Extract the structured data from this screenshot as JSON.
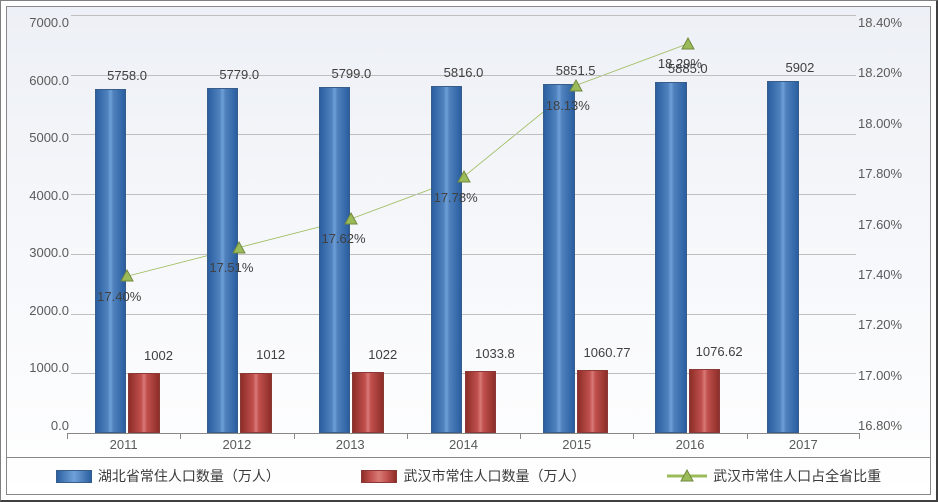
{
  "chart": {
    "type": "bar+line",
    "background_gradient": [
      "#edf0f6",
      "#ffffff"
    ],
    "grid_color": "#bfbfbf",
    "border_color": "#888888",
    "font_family": "Microsoft YaHei",
    "label_fontsize": 13,
    "label_color": "#5a5a5a",
    "datalabel_fontsize": 13,
    "datalabel_color": "#404040",
    "categories": [
      "2011",
      "2012",
      "2013",
      "2014",
      "2015",
      "2016",
      "2017"
    ],
    "left_axis": {
      "min": 0.0,
      "max": 7000.0,
      "step": 1000.0,
      "ticks": [
        "7000.0",
        "6000.0",
        "5000.0",
        "4000.0",
        "3000.0",
        "2000.0",
        "1000.0",
        "0.0"
      ]
    },
    "right_axis": {
      "min": 16.8,
      "max": 18.4,
      "step": 0.2,
      "format": "percent",
      "ticks": [
        "18.40%",
        "18.20%",
        "18.00%",
        "17.80%",
        "17.60%",
        "17.40%",
        "17.20%",
        "17.00%",
        "16.80%"
      ]
    },
    "series": {
      "hubei": {
        "name": "湖北省常住人口数量（万人）",
        "type": "bar",
        "color": "#4f81bd",
        "border_color": "#385d8a",
        "bar_width_ratio": 0.28,
        "values": [
          5758.0,
          5779.0,
          5799.0,
          5816.0,
          5851.5,
          5885.0,
          5902
        ],
        "labels": [
          "5758.0",
          "5779.0",
          "5799.0",
          "5816.0",
          "5851.5",
          "5885.0",
          "5902"
        ]
      },
      "wuhan": {
        "name": "武汉市常住人口数量（万人）",
        "type": "bar",
        "color": "#c0504d",
        "border_color": "#8c3836",
        "bar_width_ratio": 0.28,
        "values": [
          1002,
          1012,
          1022,
          1033.8,
          1060.77,
          1076.62,
          null
        ],
        "labels": [
          "1002",
          "1012",
          "1022",
          "1033.8",
          "1060.77",
          "1076.62",
          ""
        ]
      },
      "ratio": {
        "name": "武汉市常住人口占全省比重",
        "type": "line",
        "color": "#9bbb59",
        "line_width": 3,
        "marker": "triangle",
        "marker_size": 14,
        "marker_fill": "#9bbb59",
        "marker_border": "#71893f",
        "values": [
          17.4,
          17.51,
          17.62,
          17.78,
          18.13,
          18.29,
          null
        ],
        "labels": [
          "17.40%",
          "17.51%",
          "17.62%",
          "17.78%",
          "18.13%",
          "18.29%",
          ""
        ]
      }
    },
    "bar_gap_ratio": 0.02,
    "group_width_ratio": 0.58
  }
}
